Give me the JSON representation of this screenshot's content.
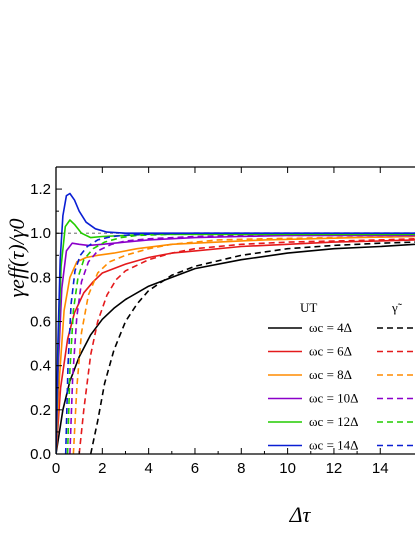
{
  "chart_data": {
    "type": "line",
    "xlabel": "Δτ",
    "ylabel": "γeff(τ)/γ0",
    "xlim": [
      0,
      15.5
    ],
    "ylim": [
      0,
      1.3
    ],
    "xticks": [
      "0",
      "2",
      "4",
      "6",
      "8",
      "10",
      "12",
      "14"
    ],
    "yticks": [
      "0.0",
      "0.2",
      "0.4",
      "0.6",
      "0.8",
      "1.0",
      "1.2"
    ],
    "reference_line": 1.0,
    "legend": {
      "position": "lower-right",
      "col1_title": "UT",
      "col2_title": "γ̃"
    },
    "series": [
      {
        "name": "ωc = 4Δ",
        "style": "solid",
        "color": "#000000",
        "x": [
          0,
          0.3,
          0.6,
          1.0,
          1.5,
          2,
          2.5,
          3,
          4,
          5,
          6,
          8,
          10,
          12,
          14,
          15.5
        ],
        "y": [
          0,
          0.2,
          0.33,
          0.44,
          0.54,
          0.61,
          0.66,
          0.7,
          0.76,
          0.8,
          0.84,
          0.88,
          0.91,
          0.93,
          0.94,
          0.95
        ]
      },
      {
        "name": "ωc = 4Δ",
        "style": "dashed",
        "color": "#000000",
        "x": [
          1.5,
          1.8,
          2.1,
          2.5,
          3,
          3.5,
          4,
          5,
          6,
          8,
          10,
          12,
          14,
          15.5
        ],
        "y": [
          0,
          0.15,
          0.32,
          0.47,
          0.6,
          0.68,
          0.74,
          0.81,
          0.85,
          0.9,
          0.93,
          0.945,
          0.955,
          0.96
        ]
      },
      {
        "name": "ωc = 6Δ",
        "style": "solid",
        "color": "#e41a1c",
        "x": [
          0,
          0.2,
          0.5,
          0.8,
          1.2,
          1.6,
          2,
          3,
          4,
          5,
          6,
          8,
          10,
          12,
          14,
          15.5
        ],
        "y": [
          0,
          0.3,
          0.52,
          0.64,
          0.73,
          0.78,
          0.82,
          0.86,
          0.89,
          0.91,
          0.92,
          0.94,
          0.95,
          0.96,
          0.965,
          0.97
        ]
      },
      {
        "name": "ωc = 6Δ",
        "style": "dashed",
        "color": "#e41a1c",
        "x": [
          1.0,
          1.2,
          1.5,
          1.8,
          2.2,
          2.6,
          3,
          4,
          5,
          6,
          8,
          10,
          12,
          14,
          15.5
        ],
        "y": [
          0,
          0.2,
          0.45,
          0.6,
          0.72,
          0.79,
          0.83,
          0.88,
          0.91,
          0.93,
          0.95,
          0.96,
          0.965,
          0.97,
          0.975
        ]
      },
      {
        "name": "ωc = 8Δ",
        "style": "solid",
        "color": "#ff8c00",
        "x": [
          0,
          0.15,
          0.35,
          0.6,
          0.9,
          1.3,
          1.8,
          2.5,
          3.5,
          5,
          7,
          9,
          11,
          13,
          15.5
        ],
        "y": [
          0,
          0.35,
          0.65,
          0.8,
          0.87,
          0.89,
          0.9,
          0.91,
          0.93,
          0.95,
          0.96,
          0.97,
          0.975,
          0.98,
          0.985
        ]
      },
      {
        "name": "ωc = 8Δ",
        "style": "dashed",
        "color": "#ff8c00",
        "x": [
          0.75,
          0.9,
          1.1,
          1.4,
          1.8,
          2.3,
          3,
          4,
          5,
          7,
          9,
          12,
          15.5
        ],
        "y": [
          0,
          0.3,
          0.55,
          0.72,
          0.82,
          0.87,
          0.9,
          0.93,
          0.95,
          0.97,
          0.975,
          0.98,
          0.985
        ]
      },
      {
        "name": "ωc = 10Δ",
        "style": "solid",
        "color": "#8b00c9",
        "x": [
          0,
          0.1,
          0.25,
          0.45,
          0.7,
          1.0,
          1.4,
          2,
          3,
          4,
          6,
          8,
          10,
          12,
          15.5
        ],
        "y": [
          0,
          0.4,
          0.75,
          0.92,
          0.955,
          0.95,
          0.945,
          0.95,
          0.96,
          0.97,
          0.98,
          0.985,
          0.99,
          0.99,
          0.99
        ]
      },
      {
        "name": "ωc = 10Δ",
        "style": "dashed",
        "color": "#8b00c9",
        "x": [
          0.6,
          0.72,
          0.9,
          1.1,
          1.4,
          1.8,
          2.4,
          3,
          4,
          6,
          8,
          11,
          15.5
        ],
        "y": [
          0,
          0.35,
          0.62,
          0.78,
          0.87,
          0.92,
          0.95,
          0.965,
          0.975,
          0.985,
          0.99,
          0.99,
          0.99
        ]
      },
      {
        "name": "ωc = 12Δ",
        "style": "solid",
        "color": "#22cc00",
        "x": [
          0,
          0.1,
          0.22,
          0.4,
          0.6,
          0.8,
          1.1,
          1.5,
          2,
          3,
          4,
          6,
          9,
          12,
          15.5
        ],
        "y": [
          0,
          0.5,
          0.85,
          1.03,
          1.06,
          1.04,
          1.0,
          0.98,
          0.985,
          0.99,
          0.995,
          0.995,
          0.995,
          0.995,
          0.995
        ]
      },
      {
        "name": "ωc = 12Δ",
        "style": "dashed",
        "color": "#22cc00",
        "x": [
          0.5,
          0.6,
          0.75,
          0.95,
          1.2,
          1.6,
          2.1,
          2.8,
          3.5,
          5,
          7,
          10,
          15.5
        ],
        "y": [
          0,
          0.38,
          0.65,
          0.8,
          0.88,
          0.93,
          0.96,
          0.98,
          0.99,
          0.995,
          0.995,
          0.995,
          0.995
        ]
      },
      {
        "name": "ωc = 14Δ",
        "style": "solid",
        "color": "#0a1fd4",
        "x": [
          0,
          0.08,
          0.18,
          0.3,
          0.45,
          0.6,
          0.8,
          1.0,
          1.3,
          1.7,
          2.2,
          3,
          4,
          6,
          9,
          12,
          15.5
        ],
        "y": [
          0,
          0.5,
          0.88,
          1.08,
          1.17,
          1.18,
          1.15,
          1.1,
          1.05,
          1.02,
          1.005,
          1.0,
          1.0,
          1.0,
          1.0,
          1.0,
          1.0
        ]
      },
      {
        "name": "ωc = 14Δ",
        "style": "dashed",
        "color": "#0a1fd4",
        "x": [
          0.42,
          0.52,
          0.65,
          0.82,
          1.05,
          1.35,
          1.8,
          2.4,
          3.2,
          4.5,
          6,
          9,
          15.5
        ],
        "y": [
          0,
          0.4,
          0.68,
          0.83,
          0.9,
          0.94,
          0.97,
          0.985,
          0.993,
          0.998,
          1.0,
          1.0,
          1.0
        ]
      }
    ]
  }
}
